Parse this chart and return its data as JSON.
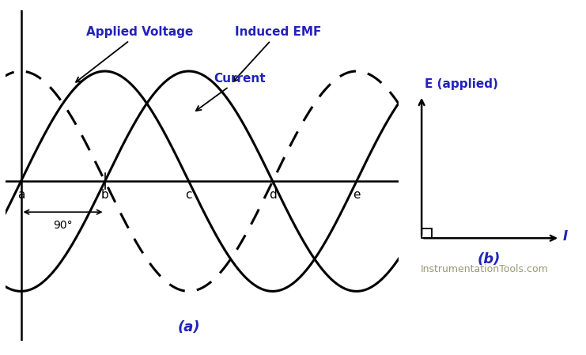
{
  "bg_color": "#ffffff",
  "label_color_blue": "#2222bb",
  "label_color_gray": "#999977",
  "axis_color": "#000000",
  "wave_color": "#000000",
  "title_a": "(a)",
  "title_b": "(b)",
  "watermark": "InstrumentationTools.com",
  "applied_voltage_label": "Applied Voltage",
  "induced_emf_label": "Induced EMF",
  "current_label": "Current",
  "e_applied_label": "E (applied)",
  "i_label": "I",
  "points": [
    "a",
    "b",
    "c",
    "d",
    "e"
  ],
  "phase_shift_label": "90°",
  "amplitude": 1.0,
  "n_points": 1000,
  "x_cycles": 2.0,
  "voltage_phase": 0.0,
  "current_phase_lag": 1.5707963267948966,
  "emf_phase_lead": 1.5707963267948966,
  "point_positions": [
    0,
    1,
    2,
    3,
    4
  ],
  "xlim_left": -0.18,
  "xlim_right": 4.5,
  "ylim_bottom": -1.45,
  "ylim_top": 1.55,
  "wave_linewidth": 2.2,
  "axis_linewidth": 1.8,
  "label_fontsize": 11,
  "points_fontsize": 11,
  "title_fontsize": 13
}
